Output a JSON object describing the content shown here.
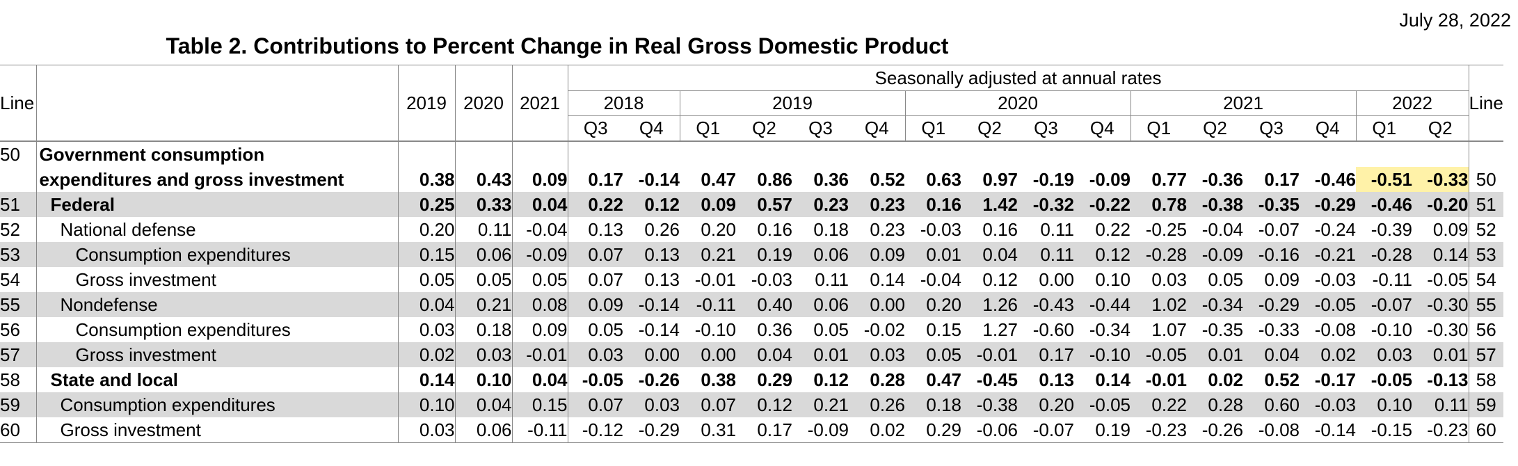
{
  "header": {
    "date": "July 28, 2022",
    "title": "Table 2. Contributions to Percent Change in Real Gross Domestic Product",
    "line_label": "Line",
    "seasonal_label": "Seasonally adjusted at annual rates",
    "annual_years": [
      "2019",
      "2020",
      "2021"
    ],
    "quarter_years": [
      {
        "year": "2018",
        "quarters": [
          "Q3",
          "Q4"
        ]
      },
      {
        "year": "2019",
        "quarters": [
          "Q1",
          "Q2",
          "Q3",
          "Q4"
        ]
      },
      {
        "year": "2020",
        "quarters": [
          "Q1",
          "Q2",
          "Q3",
          "Q4"
        ]
      },
      {
        "year": "2021",
        "quarters": [
          "Q1",
          "Q2",
          "Q3",
          "Q4"
        ]
      },
      {
        "year": "2022",
        "quarters": [
          "Q1",
          "Q2"
        ]
      }
    ]
  },
  "highlight_color": "#fff2a8",
  "rows": [
    {
      "line": "50",
      "label_line1": "Government consumption",
      "label": "expenditures and gross investment",
      "bold": true,
      "shade": false,
      "values": [
        "0.38",
        "0.43",
        "0.09",
        "0.17",
        "-0.14",
        "0.47",
        "0.86",
        "0.36",
        "0.52",
        "0.63",
        "0.97",
        "-0.19",
        "-0.09",
        "0.77",
        "-0.36",
        "0.17",
        "-0.46",
        "-0.51",
        "-0.33"
      ]
    },
    {
      "line": "51",
      "label": "Federal",
      "bold": true,
      "shade": true,
      "values": [
        "0.25",
        "0.33",
        "0.04",
        "0.22",
        "0.12",
        "0.09",
        "0.57",
        "0.23",
        "0.23",
        "0.16",
        "1.42",
        "-0.32",
        "-0.22",
        "0.78",
        "-0.38",
        "-0.35",
        "-0.29",
        "-0.46",
        "-0.20"
      ]
    },
    {
      "line": "52",
      "label": "National defense",
      "bold": false,
      "shade": false,
      "values": [
        "0.20",
        "0.11",
        "-0.04",
        "0.13",
        "0.26",
        "0.20",
        "0.16",
        "0.18",
        "0.23",
        "-0.03",
        "0.16",
        "0.11",
        "0.22",
        "-0.25",
        "-0.04",
        "-0.07",
        "-0.24",
        "-0.39",
        "0.09"
      ]
    },
    {
      "line": "53",
      "label": "Consumption expenditures",
      "bold": false,
      "shade": true,
      "values": [
        "0.15",
        "0.06",
        "-0.09",
        "0.07",
        "0.13",
        "0.21",
        "0.19",
        "0.06",
        "0.09",
        "0.01",
        "0.04",
        "0.11",
        "0.12",
        "-0.28",
        "-0.09",
        "-0.16",
        "-0.21",
        "-0.28",
        "0.14"
      ]
    },
    {
      "line": "54",
      "label": "Gross investment",
      "bold": false,
      "shade": false,
      "values": [
        "0.05",
        "0.05",
        "0.05",
        "0.07",
        "0.13",
        "-0.01",
        "-0.03",
        "0.11",
        "0.14",
        "-0.04",
        "0.12",
        "0.00",
        "0.10",
        "0.03",
        "0.05",
        "0.09",
        "-0.03",
        "-0.11",
        "-0.05"
      ]
    },
    {
      "line": "55",
      "label": "Nondefense",
      "bold": false,
      "shade": true,
      "values": [
        "0.04",
        "0.21",
        "0.08",
        "0.09",
        "-0.14",
        "-0.11",
        "0.40",
        "0.06",
        "0.00",
        "0.20",
        "1.26",
        "-0.43",
        "-0.44",
        "1.02",
        "-0.34",
        "-0.29",
        "-0.05",
        "-0.07",
        "-0.30"
      ]
    },
    {
      "line": "56",
      "label": "Consumption expenditures",
      "bold": false,
      "shade": false,
      "values": [
        "0.03",
        "0.18",
        "0.09",
        "0.05",
        "-0.14",
        "-0.10",
        "0.36",
        "0.05",
        "-0.02",
        "0.15",
        "1.27",
        "-0.60",
        "-0.34",
        "1.07",
        "-0.35",
        "-0.33",
        "-0.08",
        "-0.10",
        "-0.30"
      ]
    },
    {
      "line": "57",
      "label": "Gross investment",
      "bold": false,
      "shade": true,
      "values": [
        "0.02",
        "0.03",
        "-0.01",
        "0.03",
        "0.00",
        "0.00",
        "0.04",
        "0.01",
        "0.03",
        "0.05",
        "-0.01",
        "0.17",
        "-0.10",
        "-0.05",
        "0.01",
        "0.04",
        "0.02",
        "0.03",
        "0.01"
      ]
    },
    {
      "line": "58",
      "label": "State and local",
      "bold": true,
      "shade": false,
      "values": [
        "0.14",
        "0.10",
        "0.04",
        "-0.05",
        "-0.26",
        "0.38",
        "0.29",
        "0.12",
        "0.28",
        "0.47",
        "-0.45",
        "0.13",
        "0.14",
        "-0.01",
        "0.02",
        "0.52",
        "-0.17",
        "-0.05",
        "-0.13"
      ]
    },
    {
      "line": "59",
      "label": "Consumption expenditures",
      "bold": false,
      "shade": true,
      "values": [
        "0.10",
        "0.04",
        "0.15",
        "0.07",
        "0.03",
        "0.07",
        "0.12",
        "0.21",
        "0.26",
        "0.18",
        "-0.38",
        "0.20",
        "-0.05",
        "0.22",
        "0.28",
        "0.60",
        "-0.03",
        "0.10",
        "0.11"
      ]
    },
    {
      "line": "60",
      "label": "Gross investment",
      "bold": false,
      "shade": false,
      "values": [
        "0.03",
        "0.06",
        "-0.11",
        "-0.12",
        "-0.29",
        "0.31",
        "0.17",
        "-0.09",
        "0.02",
        "0.29",
        "-0.06",
        "-0.07",
        "0.19",
        "-0.23",
        "-0.26",
        "-0.08",
        "-0.14",
        "-0.15",
        "-0.23"
      ]
    }
  ]
}
